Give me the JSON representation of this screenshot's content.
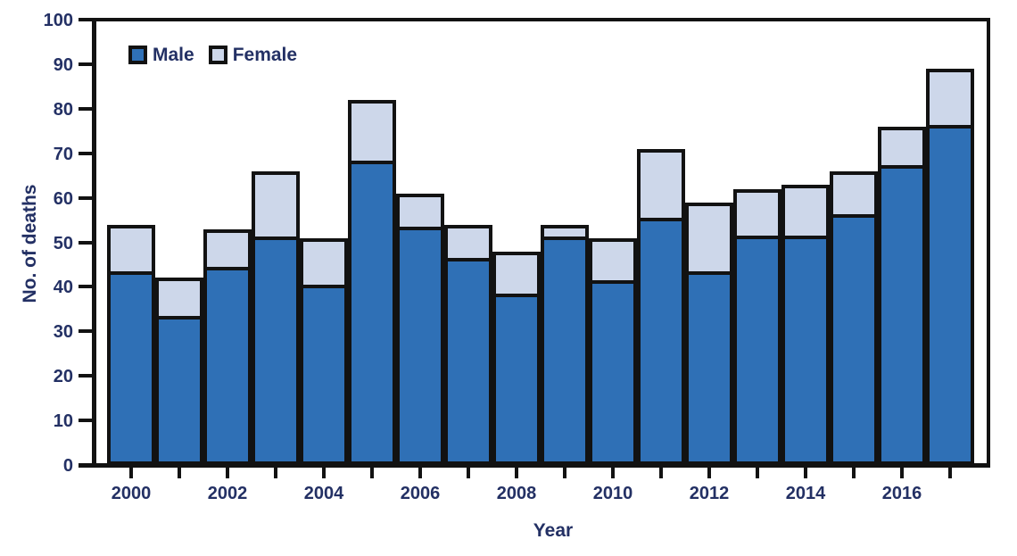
{
  "chart_data": {
    "type": "bar",
    "stacked": true,
    "title": "",
    "xlabel": "Year",
    "ylabel": "No. of deaths",
    "ylim": [
      0,
      100
    ],
    "ytick_interval": 10,
    "y_ticks": [
      0,
      10,
      20,
      30,
      40,
      50,
      60,
      70,
      80,
      90,
      100
    ],
    "categories": [
      2000,
      2001,
      2002,
      2003,
      2004,
      2005,
      2006,
      2007,
      2008,
      2009,
      2010,
      2011,
      2012,
      2013,
      2014,
      2015,
      2016,
      2017
    ],
    "xtick_labels": [
      "2000",
      "2002",
      "2004",
      "2006",
      "2008",
      "2010",
      "2012",
      "2014",
      "2016"
    ],
    "series": [
      {
        "name": "Male",
        "color": "#2f70b6",
        "values": [
          43,
          33,
          44,
          51,
          40,
          68,
          53,
          46,
          38,
          51,
          41,
          55,
          43,
          51,
          51,
          56,
          67,
          76
        ]
      },
      {
        "name": "Female",
        "color": "#cdd7ea",
        "values": [
          11,
          9,
          9,
          15,
          11,
          14,
          8,
          8,
          10,
          3,
          10,
          16,
          16,
          11,
          12,
          10,
          9,
          13
        ]
      }
    ],
    "totals": [
      54,
      42,
      53,
      66,
      51,
      82,
      61,
      54,
      48,
      54,
      51,
      71,
      59,
      62,
      63,
      66,
      76,
      89
    ],
    "legend": {
      "position": "top-left",
      "items": [
        "Male",
        "Female"
      ]
    },
    "grid": false
  },
  "colors": {
    "male": "#2f70b6",
    "female": "#cdd7ea",
    "frame": "#121212",
    "text": "#233064",
    "background": "#ffffff"
  }
}
